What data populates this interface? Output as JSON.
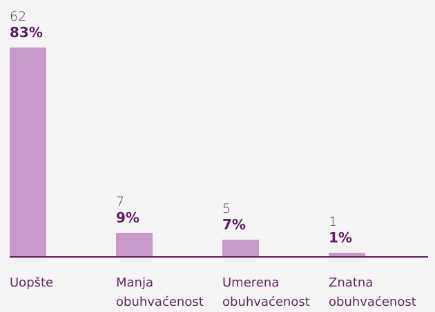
{
  "chart_data": {
    "type": "bar",
    "categories": [
      "Uopšte",
      "Manja obuhvaćenost",
      "Umerena obuhvaćenost",
      "Znatna obuhvaćenost"
    ],
    "values": [
      62,
      7,
      5,
      1
    ],
    "shares": [
      83,
      9,
      7,
      1
    ],
    "share_labels": [
      "83%",
      "9%",
      "7%",
      "1%"
    ],
    "color": "#c99ac9"
  }
}
